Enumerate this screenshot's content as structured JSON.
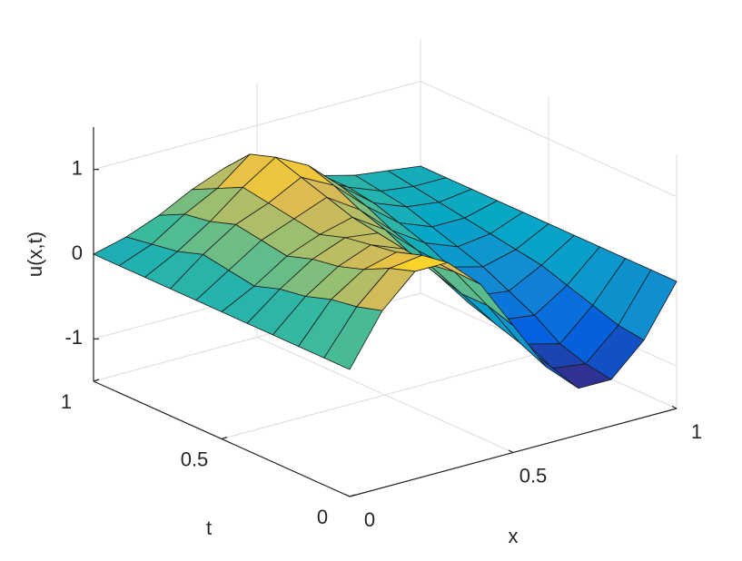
{
  "chart_data": {
    "type": "surface",
    "xlabel": "x",
    "ylabel": "t",
    "zlabel": "u(x,t)",
    "x": [
      0,
      0.1,
      0.2,
      0.3,
      0.4,
      0.5,
      0.6,
      0.7,
      0.8,
      0.9,
      1
    ],
    "t": [
      0,
      0.1,
      0.2,
      0.3,
      0.4,
      0.5,
      0.6,
      0.7,
      0.8,
      0.9,
      1
    ],
    "z": [
      [
        0,
        0.59,
        0.95,
        0.95,
        0.59,
        0,
        -0.59,
        -0.95,
        -0.95,
        -0.59,
        0
      ],
      [
        0,
        0.5,
        0.85,
        0.9,
        0.6,
        0.1,
        -0.45,
        -0.85,
        -0.9,
        -0.55,
        0
      ],
      [
        0,
        0.45,
        0.7,
        0.8,
        0.55,
        0.1,
        -0.35,
        -0.7,
        -0.8,
        -0.45,
        0
      ],
      [
        0,
        0.35,
        0.6,
        0.75,
        0.6,
        0.2,
        -0.25,
        -0.55,
        -0.6,
        -0.35,
        0
      ],
      [
        0,
        0.3,
        0.55,
        0.7,
        0.65,
        0.3,
        -0.1,
        -0.4,
        -0.45,
        -0.25,
        0
      ],
      [
        0,
        0.2,
        0.45,
        0.6,
        0.7,
        0.45,
        0.1,
        -0.2,
        -0.3,
        -0.2,
        0
      ],
      [
        0,
        0.25,
        0.5,
        0.65,
        0.8,
        0.55,
        0.2,
        -0.05,
        -0.2,
        -0.15,
        0
      ],
      [
        0,
        0.3,
        0.55,
        0.7,
        0.9,
        0.7,
        0.35,
        0.05,
        -0.1,
        -0.1,
        0
      ],
      [
        0,
        0.2,
        0.45,
        0.75,
        1.0,
        0.8,
        0.45,
        0.15,
        0,
        -0.05,
        0
      ],
      [
        0,
        0.15,
        0.4,
        0.6,
        0.9,
        0.7,
        0.4,
        0.2,
        0.05,
        0,
        0
      ],
      [
        0,
        0.1,
        0.25,
        0.45,
        0.6,
        0.5,
        0.35,
        0.2,
        0.1,
        0.05,
        0
      ]
    ],
    "xlim": [
      0,
      1
    ],
    "ylim": [
      0,
      1
    ],
    "zlim": [
      -1.5,
      1.5
    ],
    "xticks": [
      0,
      0.5,
      1
    ],
    "yticks": [
      0,
      0.5,
      1
    ],
    "zticks": [
      -1,
      0,
      1
    ],
    "grid": true,
    "colormap": "parula"
  }
}
